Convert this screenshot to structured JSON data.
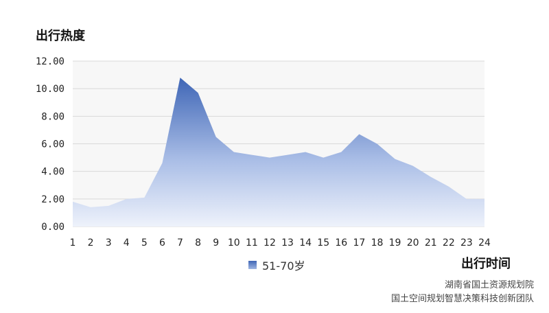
{
  "chart_data": {
    "type": "area",
    "ylabel": "出行热度",
    "xlabel": "出行时间",
    "ylim": [
      0,
      12
    ],
    "yticks": [
      "0.00",
      "2.00",
      "4.00",
      "6.00",
      "8.00",
      "10.00",
      "12.00"
    ],
    "x": [
      1,
      2,
      3,
      4,
      5,
      6,
      7,
      8,
      9,
      10,
      11,
      12,
      13,
      14,
      15,
      16,
      17,
      18,
      19,
      20,
      21,
      22,
      23,
      24
    ],
    "series": [
      {
        "name": "51-70岁",
        "values": [
          1.8,
          1.4,
          1.5,
          2.0,
          2.1,
          4.6,
          10.8,
          9.7,
          6.5,
          5.4,
          5.2,
          5.0,
          5.2,
          5.4,
          5.0,
          5.4,
          6.7,
          6.0,
          4.9,
          4.4,
          3.6,
          2.9,
          2.0,
          2.0
        ]
      }
    ],
    "grid": true,
    "legend": "bottom-center",
    "colors": {
      "area_top": "#3f66b6",
      "area_bottom": "#eef2fb",
      "grid": "#d9d9d9",
      "plot_bg": "#f7f7f7"
    }
  },
  "credits": {
    "line1": "湖南省国土资源规划院",
    "line2": "国土空间规划智慧决策科技创新团队"
  }
}
